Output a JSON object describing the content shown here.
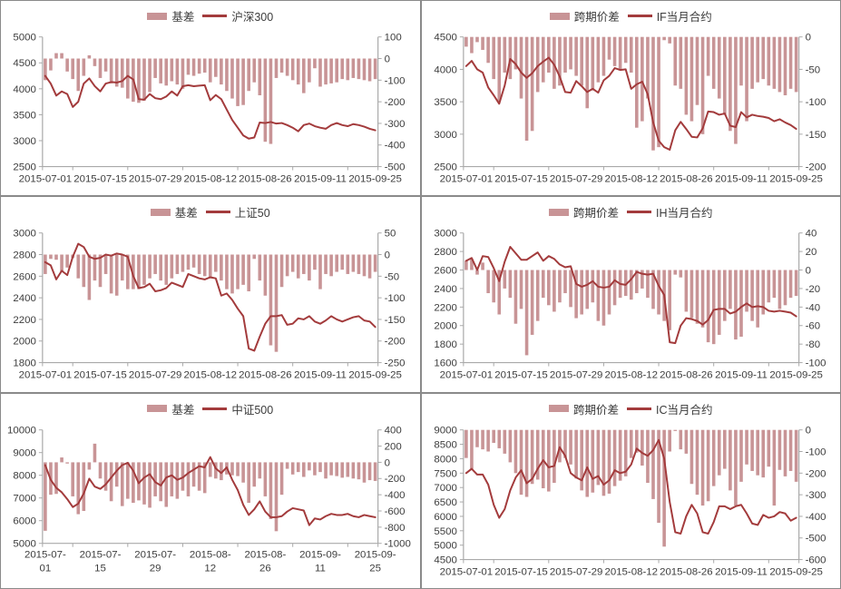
{
  "theme": {
    "bar_color": "#c89496",
    "line_color": "#a33b3c",
    "axis_color": "#a9a9a9",
    "divider_color": "#8a8a8a",
    "text_color": "#3d3d3d",
    "background": "#ffffff"
  },
  "chart_data": [
    {
      "type": "bar+line",
      "position": "top-left",
      "legend_bar": "基差",
      "legend_line": "沪深300",
      "left_ticks": [
        2500,
        3000,
        3500,
        4000,
        4500,
        5000
      ],
      "right_ticks": [
        -500,
        -400,
        -300,
        -200,
        -100,
        0,
        100
      ],
      "x_ticks": [
        "2015-07-01",
        "2015-07-15",
        "2015-07-29",
        "2015-08-12",
        "2015-08-26",
        "2015-09-11",
        "2015-09-25"
      ],
      "line": [
        4250,
        4100,
        3870,
        3950,
        3900,
        3650,
        3750,
        4100,
        4200,
        4050,
        3950,
        4100,
        4130,
        4120,
        4150,
        4250,
        4180,
        3800,
        3790,
        3900,
        3820,
        3800,
        3850,
        3950,
        3870,
        4050,
        4070,
        4050,
        4060,
        4070,
        3780,
        3880,
        3800,
        3600,
        3400,
        3250,
        3100,
        3040,
        3060,
        3350,
        3340,
        3360,
        3330,
        3340,
        3300,
        3250,
        3180,
        3300,
        3330,
        3280,
        3250,
        3230,
        3300,
        3340,
        3300,
        3280,
        3320,
        3300,
        3270,
        3230,
        3200
      ],
      "bars": [
        -100,
        -55,
        25,
        25,
        -60,
        -95,
        -150,
        -80,
        15,
        -35,
        -90,
        -60,
        -115,
        -130,
        -135,
        -185,
        -200,
        -205,
        -195,
        -155,
        -90,
        -115,
        -125,
        -105,
        -120,
        -140,
        -75,
        -80,
        -70,
        -65,
        -110,
        -85,
        -120,
        -150,
        -185,
        -220,
        -215,
        -150,
        -110,
        -170,
        -385,
        -395,
        -90,
        -65,
        -80,
        -100,
        -120,
        -160,
        -110,
        -45,
        -130,
        -120,
        -115,
        -110,
        -95,
        -100,
        -90,
        -95,
        -100,
        -105,
        -95
      ]
    },
    {
      "type": "bar+line",
      "position": "top-right",
      "legend_bar": "跨期价差",
      "legend_line": "IF当月合约",
      "left_ticks": [
        2500,
        3000,
        3500,
        4000,
        4500
      ],
      "right_ticks": [
        -200,
        -150,
        -100,
        -50,
        0
      ],
      "x_ticks": [
        "2015-07-01",
        "2015-07-15",
        "2015-07-29",
        "2015-08-12",
        "2015-08-26",
        "2015-09-11",
        "2015-09-25"
      ],
      "line": [
        4050,
        4130,
        4000,
        3950,
        3720,
        3600,
        3470,
        3750,
        4160,
        4080,
        3950,
        3870,
        3940,
        4050,
        4120,
        4180,
        4070,
        3890,
        3650,
        3640,
        3820,
        3740,
        3650,
        3700,
        3640,
        3830,
        3900,
        4020,
        3990,
        4000,
        3700,
        3770,
        3810,
        3620,
        3180,
        2900,
        2800,
        2760,
        3060,
        3190,
        3080,
        2960,
        2950,
        3090,
        3350,
        3340,
        3300,
        3320,
        3130,
        3110,
        3340,
        3260,
        3300,
        3280,
        3270,
        3250,
        3200,
        3230,
        3180,
        3140,
        3080
      ],
      "bars": [
        -15,
        -25,
        -8,
        -20,
        -40,
        -65,
        -100,
        -55,
        -65,
        -50,
        -95,
        -160,
        -145,
        -85,
        -70,
        -55,
        -80,
        -75,
        -55,
        -50,
        -60,
        -75,
        -110,
        -80,
        -70,
        -60,
        -35,
        -45,
        -50,
        -40,
        -55,
        -140,
        -130,
        -95,
        -175,
        -170,
        -5,
        -10,
        -75,
        -80,
        -120,
        -130,
        -105,
        -150,
        -60,
        -80,
        -95,
        -120,
        -145,
        -165,
        -75,
        -130,
        -80,
        -70,
        -65,
        -75,
        -80,
        -85,
        -90,
        -80,
        -85
      ]
    },
    {
      "type": "bar+line",
      "position": "middle-left",
      "legend_bar": "基差",
      "legend_line": "上证50",
      "left_ticks": [
        1800,
        2000,
        2200,
        2400,
        2600,
        2800,
        3000
      ],
      "right_ticks": [
        -250,
        -200,
        -150,
        -100,
        -50,
        0,
        50
      ],
      "x_ticks": [
        "2015-07-01",
        "2015-07-15",
        "2015-07-29",
        "2015-08-12",
        "2015-08-26",
        "2015-09-11",
        "2015-09-25"
      ],
      "line": [
        2730,
        2700,
        2570,
        2650,
        2610,
        2780,
        2900,
        2870,
        2780,
        2760,
        2770,
        2800,
        2790,
        2810,
        2800,
        2780,
        2600,
        2490,
        2500,
        2530,
        2460,
        2470,
        2490,
        2540,
        2520,
        2500,
        2620,
        2600,
        2580,
        2570,
        2590,
        2580,
        2420,
        2440,
        2380,
        2300,
        2230,
        1930,
        1910,
        2040,
        2160,
        2230,
        2230,
        2240,
        2150,
        2160,
        2210,
        2200,
        2230,
        2180,
        2160,
        2190,
        2230,
        2200,
        2180,
        2200,
        2220,
        2230,
        2190,
        2180,
        2130
      ],
      "bars": [
        -45,
        -10,
        -12,
        -40,
        -30,
        -8,
        -55,
        -75,
        -105,
        -60,
        -75,
        -45,
        -90,
        -95,
        -60,
        -80,
        -80,
        -80,
        -70,
        -55,
        -45,
        -60,
        -70,
        -55,
        -45,
        -40,
        -35,
        -30,
        -45,
        -50,
        -55,
        -40,
        -60,
        -80,
        -90,
        -80,
        -70,
        -85,
        -10,
        -60,
        -95,
        -210,
        -225,
        -75,
        -50,
        -40,
        -55,
        -45,
        -60,
        -35,
        -80,
        -45,
        -50,
        -40,
        -35,
        -45,
        -40,
        -45,
        -50,
        -55,
        -40
      ]
    },
    {
      "type": "bar+line",
      "position": "middle-right",
      "legend_bar": "跨期价差",
      "legend_line": "IH当月合约",
      "left_ticks": [
        1600,
        1800,
        2000,
        2200,
        2400,
        2600,
        2800,
        3000
      ],
      "right_ticks": [
        -100,
        -80,
        -60,
        -40,
        -20,
        0,
        20,
        40
      ],
      "x_ticks": [
        "2015-07-01",
        "2015-07-15",
        "2015-07-29",
        "2015-08-12",
        "2015-08-26",
        "2015-09-11",
        "2015-09-25"
      ],
      "line": [
        2700,
        2730,
        2600,
        2750,
        2740,
        2620,
        2480,
        2690,
        2850,
        2780,
        2710,
        2710,
        2750,
        2790,
        2700,
        2750,
        2720,
        2660,
        2630,
        2640,
        2450,
        2420,
        2440,
        2480,
        2420,
        2410,
        2420,
        2490,
        2450,
        2440,
        2500,
        2580,
        2560,
        2550,
        2560,
        2430,
        2330,
        1820,
        1810,
        2000,
        2080,
        2070,
        2050,
        2010,
        2060,
        2170,
        2180,
        2180,
        2130,
        2150,
        2200,
        2240,
        2200,
        2210,
        2200,
        2160,
        2150,
        2160,
        2150,
        2140,
        2100
      ],
      "bars": [
        10,
        12,
        -5,
        8,
        -25,
        -35,
        -48,
        -20,
        -30,
        -58,
        -42,
        -92,
        -70,
        -55,
        -30,
        -38,
        -45,
        -35,
        -25,
        -40,
        -52,
        -48,
        -42,
        -35,
        -55,
        -60,
        -48,
        -38,
        -30,
        -28,
        -32,
        -25,
        -20,
        -30,
        -42,
        -48,
        -55,
        -65,
        -5,
        -8,
        -45,
        -52,
        -58,
        -62,
        -78,
        -80,
        -70,
        -55,
        -42,
        -75,
        -72,
        -45,
        -55,
        -62,
        -48,
        -35,
        -30,
        -42,
        -38,
        -30,
        -28
      ]
    },
    {
      "type": "bar+line",
      "position": "bottom-left",
      "legend_bar": "基差",
      "legend_line": "中证500",
      "left_ticks": [
        5000,
        6000,
        7000,
        8000,
        9000,
        10000
      ],
      "right_ticks": [
        -1000,
        -800,
        -600,
        -400,
        -200,
        0,
        200,
        400
      ],
      "x_ticks": [
        [
          "2015-07-",
          "01"
        ],
        [
          "2015-07-",
          "15"
        ],
        [
          "2015-07-",
          "29"
        ],
        [
          "2015-08-",
          "12"
        ],
        [
          "2015-08-",
          "26"
        ],
        [
          "2015-09-",
          "11"
        ],
        [
          "2015-09-",
          "25"
        ]
      ],
      "line": [
        8450,
        7800,
        7450,
        7250,
        6950,
        6600,
        6750,
        7200,
        7850,
        7500,
        7400,
        7600,
        7900,
        8200,
        8450,
        8550,
        8200,
        7650,
        7900,
        8050,
        7700,
        7550,
        7900,
        8000,
        7800,
        7900,
        8100,
        8250,
        8400,
        8350,
        8800,
        8300,
        8100,
        8350,
        7800,
        7350,
        6700,
        6250,
        6500,
        6850,
        6400,
        6150,
        6150,
        6200,
        6400,
        6550,
        6500,
        6450,
        5800,
        6100,
        6050,
        6200,
        6300,
        6250,
        6250,
        6300,
        6200,
        6150,
        6250,
        6200,
        6150
      ],
      "bars": [
        -845,
        -400,
        -390,
        60,
        -15,
        -420,
        -640,
        -600,
        -90,
        230,
        -200,
        -350,
        -480,
        -300,
        -540,
        -450,
        -500,
        -470,
        -520,
        -560,
        -420,
        -480,
        -550,
        -420,
        -450,
        -350,
        -420,
        -300,
        -350,
        -380,
        -180,
        -200,
        -220,
        -150,
        -160,
        -170,
        -250,
        -500,
        -300,
        -200,
        -420,
        -700,
        -850,
        -400,
        -80,
        -150,
        -120,
        -180,
        -100,
        -160,
        -120,
        -200,
        -160,
        -170,
        -190,
        -180,
        -200,
        -210,
        -250,
        -220,
        -230
      ]
    },
    {
      "type": "bar+line",
      "position": "bottom-right",
      "legend_bar": "跨期价差",
      "legend_line": "IC当月合约",
      "left_ticks": [
        4500,
        5000,
        5500,
        6000,
        6500,
        7000,
        7500,
        8000,
        8500,
        9000
      ],
      "right_ticks": [
        -600,
        -500,
        -400,
        -300,
        -200,
        -100,
        0
      ],
      "x_ticks": [
        "2015-07-01",
        "2015-07-15",
        "2015-07-29",
        "2015-08-12",
        "2015-08-26",
        "2015-09-11",
        "2015-09-25"
      ],
      "line": [
        7500,
        7650,
        7450,
        7450,
        7100,
        6400,
        5950,
        6250,
        6900,
        7350,
        7600,
        7150,
        7300,
        7650,
        7950,
        7700,
        7750,
        8400,
        8100,
        7500,
        7350,
        7250,
        7700,
        7300,
        7400,
        7100,
        7250,
        7600,
        7500,
        7550,
        7800,
        8350,
        8200,
        8100,
        8300,
        8650,
        8000,
        6500,
        5450,
        5400,
        6000,
        6400,
        6100,
        5450,
        5400,
        5800,
        6350,
        6350,
        6250,
        6350,
        6400,
        6100,
        5750,
        5700,
        6050,
        5950,
        6000,
        6150,
        6100,
        5850,
        5950
      ],
      "bars": [
        -130,
        -180,
        -80,
        -90,
        -100,
        -60,
        -85,
        -110,
        -150,
        -200,
        -300,
        -310,
        -250,
        -230,
        -270,
        -285,
        -245,
        -150,
        -130,
        -160,
        -225,
        -280,
        -310,
        -290,
        -255,
        -305,
        -295,
        -260,
        -235,
        -215,
        -130,
        -105,
        -165,
        -245,
        -320,
        -430,
        -540,
        -100,
        -5,
        -90,
        -110,
        -250,
        -300,
        -350,
        -330,
        -260,
        -210,
        -180,
        -280,
        -350,
        -240,
        -160,
        -190,
        -210,
        -220,
        -170,
        -350,
        -185,
        -215,
        -190,
        -240
      ]
    }
  ]
}
